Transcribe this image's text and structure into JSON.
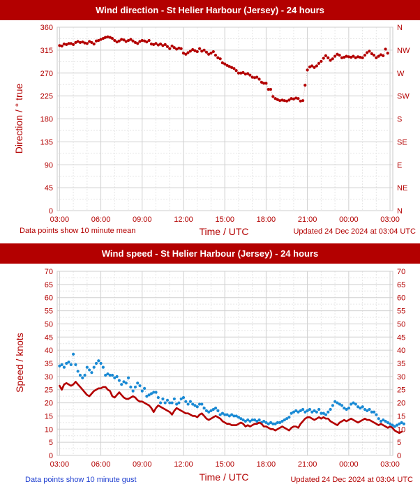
{
  "charts": [
    {
      "id": "direction",
      "title": "Wind direction - St Helier Harbour (Jersey) - 24 hours",
      "xlabel": "Time / UTC",
      "ylabel": "Direction / ° true",
      "note_left": "Data points show 10 minute mean",
      "note_right": "Updated 24 Dec 2024 at 03:04 UTC"
    },
    {
      "id": "speed",
      "title": "Wind speed - St Helier Harbour (Jersey) - 24 hours",
      "xlabel": "Time / UTC",
      "ylabel": "Speed / knots",
      "note_left": "Data points show 10 minute gust",
      "note_right": "Updated 24 Dec 2024 at 03:04 UTC"
    }
  ],
  "chart_data": [
    {
      "type": "scatter",
      "title": "Wind direction - St Helier Harbour (Jersey) - 24 hours",
      "xlabel": "Time / UTC",
      "ylabel": "Direction / ° true",
      "x_unit": "hours after 03:00 UTC on 23 Dec 2024",
      "x_tick_labels": [
        "03:00",
        "06:00",
        "09:00",
        "12:00",
        "15:00",
        "18:00",
        "21:00",
        "00:00",
        "03:00"
      ],
      "xlim": [
        -0.17,
        24.2
      ],
      "ylim": [
        0,
        360
      ],
      "y_ticks": [
        0,
        45,
        90,
        135,
        180,
        225,
        270,
        315,
        360
      ],
      "y_right_labels": [
        "N",
        "NE",
        "E",
        "SE",
        "S",
        "SW",
        "W",
        "NW",
        "N"
      ],
      "grid": true,
      "color": "#b30000",
      "series": [
        {
          "points": [
            [
              0.0,
              324
            ],
            [
              0.17,
              323
            ],
            [
              0.33,
              327
            ],
            [
              0.5,
              326
            ],
            [
              0.67,
              328
            ],
            [
              0.83,
              328
            ],
            [
              1.0,
              326
            ],
            [
              1.17,
              330
            ],
            [
              1.33,
              332
            ],
            [
              1.5,
              330
            ],
            [
              1.67,
              331
            ],
            [
              1.83,
              329
            ],
            [
              2.0,
              328
            ],
            [
              2.17,
              332
            ],
            [
              2.33,
              330
            ],
            [
              2.5,
              327
            ],
            [
              2.67,
              333
            ],
            [
              2.83,
              334
            ],
            [
              3.0,
              336
            ],
            [
              3.17,
              338
            ],
            [
              3.33,
              340
            ],
            [
              3.5,
              341
            ],
            [
              3.67,
              340
            ],
            [
              3.83,
              338
            ],
            [
              4.0,
              334
            ],
            [
              4.17,
              331
            ],
            [
              4.33,
              333
            ],
            [
              4.5,
              336
            ],
            [
              4.67,
              335
            ],
            [
              4.83,
              332
            ],
            [
              5.0,
              334
            ],
            [
              5.17,
              336
            ],
            [
              5.33,
              333
            ],
            [
              5.5,
              330
            ],
            [
              5.67,
              328
            ],
            [
              5.83,
              332
            ],
            [
              6.0,
              334
            ],
            [
              6.17,
              333
            ],
            [
              6.33,
              331
            ],
            [
              6.5,
              334
            ],
            [
              6.67,
              327
            ],
            [
              6.83,
              326
            ],
            [
              7.0,
              328
            ],
            [
              7.17,
              325
            ],
            [
              7.33,
              327
            ],
            [
              7.5,
              324
            ],
            [
              7.67,
              326
            ],
            [
              7.83,
              322
            ],
            [
              8.0,
              318
            ],
            [
              8.17,
              323
            ],
            [
              8.33,
              320
            ],
            [
              8.5,
              317
            ],
            [
              8.67,
              319
            ],
            [
              8.83,
              318
            ],
            [
              9.0,
              309
            ],
            [
              9.17,
              307
            ],
            [
              9.33,
              310
            ],
            [
              9.5,
              313
            ],
            [
              9.67,
              316
            ],
            [
              9.83,
              314
            ],
            [
              10.0,
              312
            ],
            [
              10.17,
              318
            ],
            [
              10.33,
              313
            ],
            [
              10.5,
              315
            ],
            [
              10.67,
              311
            ],
            [
              10.83,
              307
            ],
            [
              11.0,
              309
            ],
            [
              11.17,
              312
            ],
            [
              11.33,
              305
            ],
            [
              11.5,
              300
            ],
            [
              11.67,
              298
            ],
            [
              11.83,
              290
            ],
            [
              12.0,
              288
            ],
            [
              12.17,
              285
            ],
            [
              12.33,
              283
            ],
            [
              12.5,
              281
            ],
            [
              12.67,
              279
            ],
            [
              12.83,
              275
            ],
            [
              13.0,
              270
            ],
            [
              13.17,
              270
            ],
            [
              13.33,
              271
            ],
            [
              13.5,
              268
            ],
            [
              13.67,
              269
            ],
            [
              13.83,
              266
            ],
            [
              14.0,
              262
            ],
            [
              14.17,
              261
            ],
            [
              14.33,
              262
            ],
            [
              14.5,
              258
            ],
            [
              14.67,
              252
            ],
            [
              14.83,
              250
            ],
            [
              15.0,
              250
            ],
            [
              15.17,
              238
            ],
            [
              15.33,
              238
            ],
            [
              15.5,
              224
            ],
            [
              15.67,
              220
            ],
            [
              15.83,
              218
            ],
            [
              16.0,
              216
            ],
            [
              16.17,
              217
            ],
            [
              16.33,
              216
            ],
            [
              16.5,
              215
            ],
            [
              16.67,
              217
            ],
            [
              16.83,
              220
            ],
            [
              17.0,
              219
            ],
            [
              17.17,
              221
            ],
            [
              17.33,
              220
            ],
            [
              17.5,
              215
            ],
            [
              17.67,
              216
            ],
            [
              17.83,
              246
            ],
            [
              18.0,
              276
            ],
            [
              18.17,
              282
            ],
            [
              18.33,
              284
            ],
            [
              18.5,
              281
            ],
            [
              18.67,
              284
            ],
            [
              18.83,
              289
            ],
            [
              19.0,
              293
            ],
            [
              19.17,
              299
            ],
            [
              19.33,
              304
            ],
            [
              19.5,
              300
            ],
            [
              19.67,
              295
            ],
            [
              19.83,
              298
            ],
            [
              20.0,
              303
            ],
            [
              20.17,
              307
            ],
            [
              20.33,
              305
            ],
            [
              20.5,
              300
            ],
            [
              20.67,
              301
            ],
            [
              20.83,
              303
            ],
            [
              21.0,
              302
            ],
            [
              21.17,
              301
            ],
            [
              21.33,
              303
            ],
            [
              21.5,
              300
            ],
            [
              21.67,
              302
            ],
            [
              21.83,
              301
            ],
            [
              22.0,
              300
            ],
            [
              22.17,
              305
            ],
            [
              22.33,
              310
            ],
            [
              22.5,
              313
            ],
            [
              22.67,
              308
            ],
            [
              22.83,
              305
            ],
            [
              23.0,
              300
            ],
            [
              23.17,
              303
            ],
            [
              23.33,
              306
            ],
            [
              23.5,
              304
            ],
            [
              23.67,
              317
            ],
            [
              23.83,
              309
            ]
          ]
        }
      ]
    },
    {
      "type": "line",
      "title": "Wind speed - St Helier Harbour (Jersey) - 24 hours",
      "xlabel": "Time / UTC",
      "ylabel": "Speed / knots",
      "x_unit": "hours after 03:00 UTC on 23 Dec 2024",
      "x_tick_labels": [
        "03:00",
        "06:00",
        "09:00",
        "12:00",
        "15:00",
        "18:00",
        "21:00",
        "00:00",
        "03:00"
      ],
      "xlim": [
        -0.17,
        24.2
      ],
      "ylim": [
        0,
        70
      ],
      "y_ticks": [
        0,
        5,
        10,
        15,
        20,
        25,
        30,
        35,
        40,
        45,
        50,
        55,
        60,
        65,
        70
      ],
      "grid": true,
      "series": [
        {
          "kind": "line",
          "color": "#b30000",
          "x_start": 0.0,
          "x_step": 0.1667,
          "values": [
            26.5,
            25,
            27,
            27.5,
            27,
            26.5,
            27,
            28,
            27,
            26,
            25,
            24,
            23,
            22.5,
            23.5,
            24.5,
            25,
            25.5,
            25.5,
            26,
            26,
            25,
            24.5,
            22.5,
            22,
            23,
            24,
            23,
            22,
            21.5,
            21.5,
            22,
            22.5,
            22,
            21,
            20.5,
            20.5,
            20,
            19.5,
            19,
            18,
            16.5,
            18,
            19,
            18.5,
            18,
            17.5,
            17,
            16.5,
            15.5,
            17,
            18,
            17.5,
            17,
            16.5,
            16,
            16,
            15.5,
            15,
            15,
            14.5,
            15.5,
            16,
            15,
            14,
            13.5,
            14,
            14.5,
            15,
            14.5,
            14,
            13,
            12.5,
            12,
            12,
            11.5,
            11.5,
            11.5,
            12,
            12.5,
            12,
            11,
            11.5,
            11,
            11.5,
            12,
            12,
            12.5,
            12,
            11,
            11,
            10.5,
            10,
            10,
            9.5,
            10,
            10.5,
            11,
            10.5,
            10,
            9.5,
            10.5,
            11,
            11,
            10.5,
            12,
            13,
            14,
            14.5,
            14.5,
            14,
            13.5,
            14,
            14.5,
            14,
            14.5,
            14,
            14,
            13,
            12.5,
            12,
            11.5,
            12.5,
            13,
            13.5,
            13,
            13.5,
            14,
            13.5,
            13,
            12.5,
            13,
            13.5,
            14,
            13.5,
            13.5,
            13,
            12.5,
            12,
            11.5,
            12,
            11.5,
            11,
            10.5,
            11,
            10.5,
            9.5,
            9,
            8.5,
            9
          ]
        },
        {
          "kind": "dots",
          "color": "#1a8ad4",
          "x_start": 0.0,
          "x_step": 0.1667,
          "values": [
            34,
            34.5,
            33.5,
            35,
            35.5,
            34.5,
            38.5,
            34.5,
            32,
            30.5,
            29.5,
            30.5,
            33.5,
            32.5,
            31.5,
            33.5,
            35,
            36,
            35,
            33.5,
            30.5,
            31,
            30.5,
            30.5,
            29.5,
            30,
            28.5,
            27,
            28,
            27.5,
            29.5,
            26,
            24.5,
            26,
            27.5,
            26.5,
            24.5,
            25.5,
            22.5,
            23,
            23.5,
            24,
            24,
            22,
            20,
            21.5,
            20,
            21,
            20,
            20,
            21.5,
            19.5,
            20,
            21.5,
            22,
            20.5,
            19.5,
            20.5,
            19.5,
            19,
            18.5,
            19.5,
            19.5,
            18,
            17,
            16.5,
            17,
            17.5,
            18,
            17,
            15.5,
            16,
            15.5,
            15.5,
            15,
            15.5,
            15,
            15,
            14.5,
            14,
            13.5,
            13,
            13.5,
            13,
            13.5,
            13.5,
            13,
            13.5,
            12.5,
            13,
            12.5,
            12,
            12.5,
            12,
            12,
            12.5,
            12.5,
            13,
            13.5,
            14,
            14.5,
            16,
            16.5,
            17,
            16.5,
            17,
            17.5,
            16.5,
            17,
            17.5,
            16.5,
            17,
            16.5,
            17.5,
            16,
            16,
            15.5,
            16.5,
            17.5,
            19,
            20.5,
            20,
            19.5,
            19,
            18,
            17.5,
            18,
            19.5,
            20,
            19.5,
            18.5,
            18,
            18.5,
            17.5,
            17,
            17.5,
            16.5,
            16.5,
            15.5,
            14,
            13,
            13.5,
            13,
            12.5,
            12,
            11.5,
            11,
            11.5,
            12,
            12.5,
            12
          ]
        }
      ]
    }
  ]
}
